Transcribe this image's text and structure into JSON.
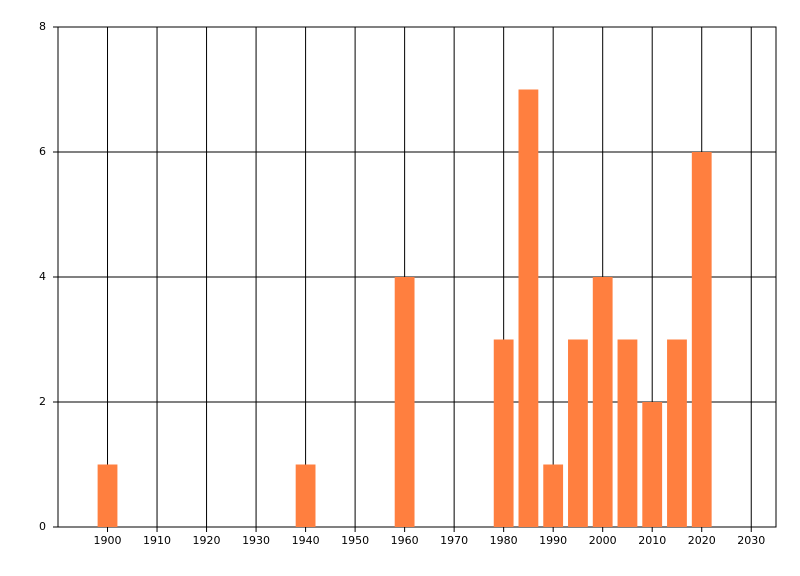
{
  "chart_data": {
    "type": "bar",
    "x": [
      1900,
      1940,
      1960,
      1980,
      1985,
      1990,
      1995,
      2000,
      2005,
      2010,
      2015,
      2020
    ],
    "values": [
      1,
      1,
      4,
      3,
      7,
      1,
      3,
      4,
      3,
      2,
      3,
      6
    ],
    "color": "#ff7f3f",
    "xlim": [
      1890,
      2035
    ],
    "xticks": [
      1900,
      1910,
      1920,
      1930,
      1940,
      1950,
      1960,
      1970,
      1980,
      1990,
      2000,
      2010,
      2020,
      2030
    ],
    "ylim": [
      0,
      8
    ],
    "yticks": [
      0,
      2,
      4,
      6,
      8
    ],
    "grid": true
  }
}
